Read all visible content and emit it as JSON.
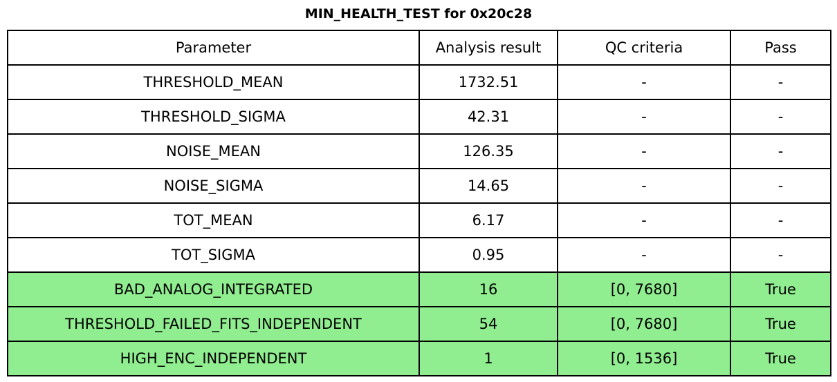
{
  "title": "MIN_HEALTH_TEST for 0x20c28",
  "colors": {
    "highlight_green": "#90EE90",
    "border": "#000000",
    "background": "#FFFFFF",
    "text": "#000000"
  },
  "chart_data": {
    "type": "table",
    "title": "MIN_HEALTH_TEST for 0x20c28",
    "columns": [
      "Parameter",
      "Analysis result",
      "QC criteria",
      "Pass"
    ],
    "rows": [
      {
        "cells": [
          "THRESHOLD_MEAN",
          "1732.51",
          "-",
          "-"
        ],
        "highlight": false
      },
      {
        "cells": [
          "THRESHOLD_SIGMA",
          "42.31",
          "-",
          "-"
        ],
        "highlight": false
      },
      {
        "cells": [
          "NOISE_MEAN",
          "126.35",
          "-",
          "-"
        ],
        "highlight": false
      },
      {
        "cells": [
          "NOISE_SIGMA",
          "14.65",
          "-",
          "-"
        ],
        "highlight": false
      },
      {
        "cells": [
          "TOT_MEAN",
          "6.17",
          "-",
          "-"
        ],
        "highlight": false
      },
      {
        "cells": [
          "TOT_SIGMA",
          "0.95",
          "-",
          "-"
        ],
        "highlight": false
      },
      {
        "cells": [
          "BAD_ANALOG_INTEGRATED",
          "16",
          "[0, 7680]",
          "True"
        ],
        "highlight": true
      },
      {
        "cells": [
          "THRESHOLD_FAILED_FITS_INDEPENDENT",
          "54",
          "[0, 7680]",
          "True"
        ],
        "highlight": true
      },
      {
        "cells": [
          "HIGH_ENC_INDEPENDENT",
          "1",
          "[0, 1536]",
          "True"
        ],
        "highlight": true
      }
    ],
    "layout_hints": {
      "highlighted_row_indices": [
        6,
        7,
        8
      ],
      "highlight_meaning": "QC passed (Pass = True)",
      "grid": true
    }
  }
}
